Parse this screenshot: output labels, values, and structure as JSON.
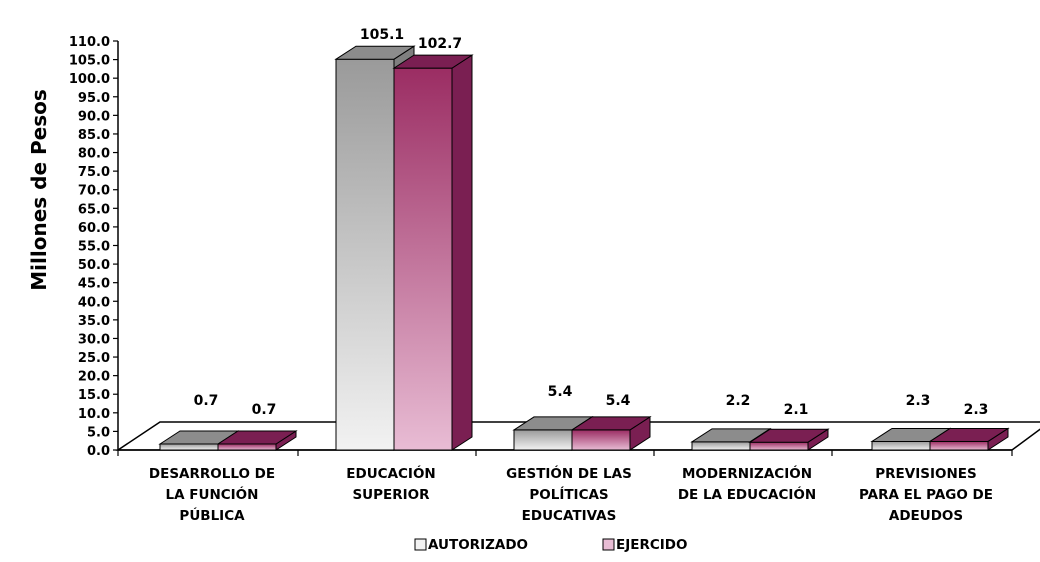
{
  "chart_data": {
    "type": "bar",
    "ylabel": "Millones de Pesos",
    "ylim": [
      0,
      110
    ],
    "y_ticks": [
      "0.0",
      "5.0",
      "10.0",
      "15.0",
      "20.0",
      "25.0",
      "30.0",
      "35.0",
      "40.0",
      "45.0",
      "50.0",
      "55.0",
      "60.0",
      "65.0",
      "70.0",
      "75.0",
      "80.0",
      "85.0",
      "90.0",
      "95.0",
      "100.0",
      "105.0",
      "110.0"
    ],
    "categories": [
      [
        "DESARROLLO  DE",
        "LA FUNCIÓN",
        "PÚBLICA"
      ],
      [
        "EDUCACIÓN",
        "SUPERIOR"
      ],
      [
        "GESTIÓN DE LAS",
        "POLÍTICAS",
        "EDUCATIVAS"
      ],
      [
        "MODERNIZACIÓN",
        "DE LA EDUCACIÓN"
      ],
      [
        "PREVISIONES",
        "PARA EL PAGO DE",
        "ADEUDOS"
      ]
    ],
    "series": [
      {
        "name": "AUTORIZADO",
        "values": [
          0.7,
          105.1,
          5.4,
          2.2,
          2.3
        ],
        "labels": [
          "0.7",
          "105.1",
          "5.4",
          "2.2",
          "2.3"
        ]
      },
      {
        "name": "EJERCIDO",
        "values": [
          0.7,
          102.7,
          5.4,
          2.1,
          2.3
        ],
        "labels": [
          "0.7",
          "102.7",
          "5.4",
          "2.1",
          "2.3"
        ]
      }
    ],
    "colors": {
      "autorizado_top": "#8c8c8c",
      "autorizado_light": "#f2f2f2",
      "autorizado_dark": "#a6a6a6",
      "ejercido_top": "#7a1f52",
      "ejercido_light": "#e8bcd4",
      "ejercido_dark": "#9e3065"
    },
    "legend_position": "bottom",
    "grid": false,
    "style": "3d-bar"
  }
}
